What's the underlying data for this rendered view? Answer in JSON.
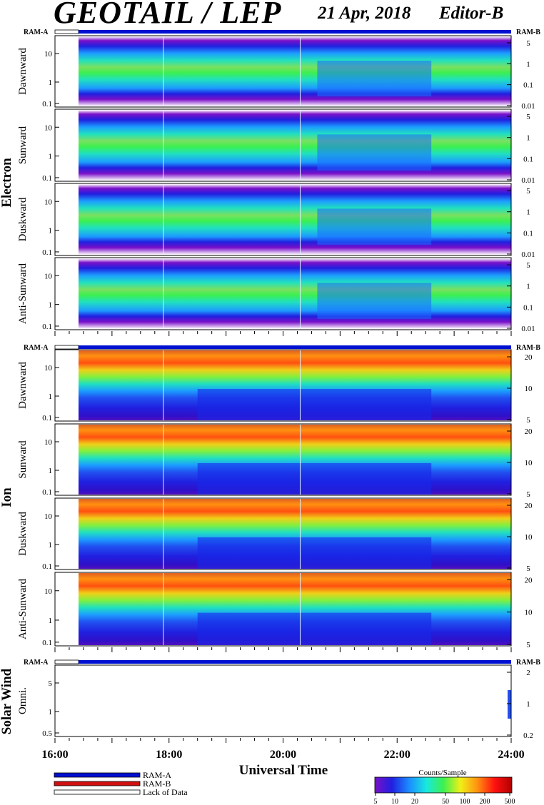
{
  "header": {
    "title": "GEOTAIL / LEP",
    "date": "21 Apr, 2018",
    "editor": "Editor-B"
  },
  "ram_labels": {
    "left": "RAM-A",
    "right": "RAM-B"
  },
  "groups": [
    {
      "name": "Electron",
      "panels": [
        "Dawnward",
        "Sunward",
        "Duskward",
        "Anti-Sunward"
      ]
    },
    {
      "name": "Ion",
      "panels": [
        "Dawnward",
        "Sunward",
        "Duskward",
        "Anti-Sunward"
      ]
    },
    {
      "name": "Solar Wind",
      "panels": [
        "Omni."
      ]
    }
  ],
  "x_axis": {
    "title": "Universal Time",
    "ticks": [
      "16:00",
      "18:00",
      "20:00",
      "22:00",
      "24:00"
    ]
  },
  "legend": {
    "items": [
      {
        "label": "RAM-A",
        "color": "#0010d0"
      },
      {
        "label": "RAM-B",
        "color": "#d01010"
      },
      {
        "label": "Lack of Data",
        "color": "#ffffff"
      }
    ]
  },
  "colorbar": {
    "title": "Counts/Sample",
    "ticks": [
      "5",
      "10",
      "20",
      "50",
      "100",
      "200",
      "500"
    ],
    "colors": [
      "#7a10c8",
      "#2020e0",
      "#1c8cff",
      "#18e8e0",
      "#3cf050",
      "#f0f018",
      "#ff9010",
      "#ff1010",
      "#b00000"
    ]
  },
  "chart_data": [
    {
      "type": "heatmap",
      "group": "Electron",
      "panel": "Dawnward",
      "x_range": [
        "16:00",
        "24:00"
      ],
      "y_scale": "log",
      "y_ticks_left": [
        "10",
        "1",
        "0.1"
      ],
      "y_ticks_right": [
        "5",
        "1",
        "0.1",
        "0.01"
      ]
    },
    {
      "type": "heatmap",
      "group": "Electron",
      "panel": "Sunward",
      "x_range": [
        "16:00",
        "24:00"
      ],
      "y_scale": "log",
      "y_ticks_left": [
        "10",
        "1",
        "0.1"
      ],
      "y_ticks_right": [
        "5",
        "1",
        "0.1",
        "0.01"
      ]
    },
    {
      "type": "heatmap",
      "group": "Electron",
      "panel": "Duskward",
      "x_range": [
        "16:00",
        "24:00"
      ],
      "y_scale": "log",
      "y_ticks_left": [
        "10",
        "1",
        "0.1"
      ],
      "y_ticks_right": [
        "5",
        "1",
        "0.1",
        "0.01"
      ]
    },
    {
      "type": "heatmap",
      "group": "Electron",
      "panel": "Anti-Sunward",
      "x_range": [
        "16:00",
        "24:00"
      ],
      "y_scale": "log",
      "y_ticks_left": [
        "10",
        "1",
        "0.1"
      ],
      "y_ticks_right": [
        "5",
        "1",
        "0.1",
        "0.01"
      ]
    },
    {
      "type": "heatmap",
      "group": "Ion",
      "panel": "Dawnward",
      "x_range": [
        "16:00",
        "24:00"
      ],
      "y_scale": "log",
      "y_ticks_left": [
        "10",
        "1",
        "0.1"
      ],
      "y_ticks_right": [
        "20",
        "10",
        "5"
      ]
    },
    {
      "type": "heatmap",
      "group": "Ion",
      "panel": "Sunward",
      "x_range": [
        "16:00",
        "24:00"
      ],
      "y_scale": "log",
      "y_ticks_left": [
        "10",
        "1",
        "0.1"
      ],
      "y_ticks_right": [
        "20",
        "10",
        "5"
      ]
    },
    {
      "type": "heatmap",
      "group": "Ion",
      "panel": "Duskward",
      "x_range": [
        "16:00",
        "24:00"
      ],
      "y_scale": "log",
      "y_ticks_left": [
        "10",
        "1",
        "0.1"
      ],
      "y_ticks_right": [
        "20",
        "10",
        "5"
      ]
    },
    {
      "type": "heatmap",
      "group": "Ion",
      "panel": "Anti-Sunward",
      "x_range": [
        "16:00",
        "24:00"
      ],
      "y_scale": "log",
      "y_ticks_left": [
        "10",
        "1",
        "0.1"
      ],
      "y_ticks_right": [
        "20",
        "10",
        "5"
      ]
    },
    {
      "type": "heatmap",
      "group": "Solar Wind",
      "panel": "Omni.",
      "x_range": [
        "16:00",
        "24:00"
      ],
      "y_scale": "log",
      "y_ticks_left": [
        "5",
        "1",
        "0.5"
      ],
      "y_ticks_right": [
        "2",
        "1",
        "0.2"
      ]
    }
  ]
}
